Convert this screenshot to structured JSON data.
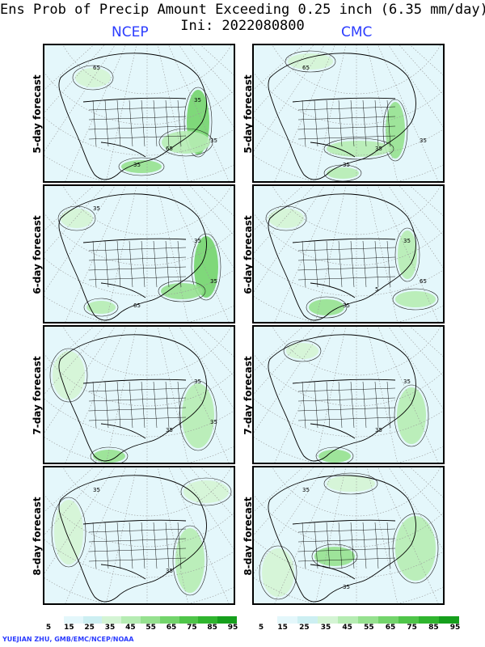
{
  "title": {
    "line1": "Ens Prob of Precip Amount Exceeding 0.25 inch (6.35 mm/day)",
    "line2": "Ini: 2022080800"
  },
  "columns": [
    {
      "label": "NCEP"
    },
    {
      "label": "CMC"
    }
  ],
  "rows": [
    {
      "label": "5-day forecast"
    },
    {
      "label": "6-day forecast"
    },
    {
      "label": "7-day forecast"
    },
    {
      "label": "8-day forecast"
    }
  ],
  "colorbar": {
    "labels": [
      "5",
      "15",
      "25",
      "35",
      "45",
      "55",
      "65",
      "75",
      "85",
      "95"
    ],
    "colors": [
      "#ffffff",
      "#e4f7fb",
      "#cdeff2",
      "#d4f4d4",
      "#b6ecb3",
      "#96e18f",
      "#73d46b",
      "#4fc549",
      "#2fb52e",
      "#159f1c"
    ]
  },
  "credit": "YUEJIAN ZHU, GMB/EMC/NCEP/NOAA",
  "panel_contour_labels": {
    "r0c0": [
      "35",
      "65",
      "65",
      "35",
      "35"
    ],
    "r0c1": [
      "35",
      "65",
      "35",
      "35"
    ],
    "r1c0": [
      "35",
      "65",
      "35",
      "35"
    ],
    "r1c1": [
      "35",
      "65",
      "35",
      "5"
    ],
    "r2c0": [
      "35",
      "35",
      "35"
    ],
    "r2c1": [
      "35",
      "35"
    ],
    "r3c0": [
      "35",
      "35"
    ],
    "r3c1": [
      "35",
      "35"
    ]
  }
}
